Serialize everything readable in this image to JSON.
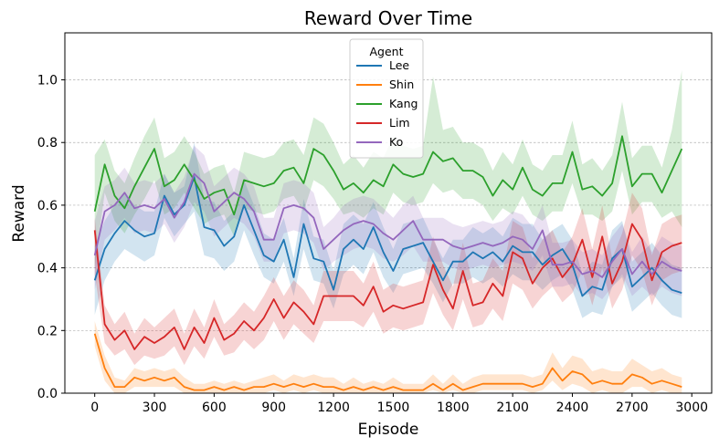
{
  "chart_data": {
    "type": "line",
    "title": "Reward Over Time",
    "xlabel": "Episode",
    "ylabel": "Reward",
    "xlim": [
      -150,
      3100
    ],
    "ylim": [
      0.0,
      1.15
    ],
    "xticks": [
      0,
      300,
      600,
      900,
      1200,
      1500,
      1800,
      2100,
      2400,
      2700,
      3000
    ],
    "xtick_labels": [
      "0",
      "300",
      "600",
      "900",
      "1200",
      "1500",
      "1800",
      "2100",
      "2400",
      "2700",
      "3000"
    ],
    "yticks": [
      0.0,
      0.2,
      0.4,
      0.6,
      0.8,
      1.0
    ],
    "ytick_labels": [
      "0.0",
      "0.2",
      "0.4",
      "0.6",
      "0.8",
      "1.0"
    ],
    "grid": "horizontal dashed",
    "legend": {
      "title": "Agent",
      "placement": "top-center"
    },
    "x": [
      0,
      50,
      100,
      150,
      200,
      250,
      300,
      350,
      400,
      450,
      500,
      550,
      600,
      650,
      700,
      750,
      800,
      850,
      900,
      950,
      1000,
      1050,
      1100,
      1150,
      1200,
      1250,
      1300,
      1350,
      1400,
      1450,
      1500,
      1550,
      1600,
      1650,
      1700,
      1750,
      1800,
      1850,
      1900,
      1950,
      2000,
      2050,
      2100,
      2150,
      2200,
      2250,
      2300,
      2350,
      2400,
      2450,
      2500,
      2550,
      2600,
      2650,
      2700,
      2750,
      2800,
      2850,
      2900,
      2950
    ],
    "series": [
      {
        "name": "Lee",
        "color": "#1f77b4",
        "values": [
          0.36,
          0.46,
          0.51,
          0.55,
          0.52,
          0.5,
          0.51,
          0.63,
          0.57,
          0.6,
          0.69,
          0.53,
          0.52,
          0.47,
          0.5,
          0.6,
          0.52,
          0.44,
          0.42,
          0.49,
          0.37,
          0.54,
          0.43,
          0.42,
          0.33,
          0.46,
          0.49,
          0.46,
          0.53,
          0.45,
          0.39,
          0.46,
          0.47,
          0.48,
          0.42,
          0.36,
          0.42,
          0.42,
          0.45,
          0.43,
          0.45,
          0.42,
          0.47,
          0.45,
          0.45,
          0.41,
          0.44,
          0.46,
          0.41,
          0.31,
          0.34,
          0.33,
          0.43,
          0.46,
          0.34,
          0.37,
          0.4,
          0.36,
          0.33,
          0.32
        ],
        "lower": [
          0.25,
          0.36,
          0.42,
          0.46,
          0.44,
          0.42,
          0.44,
          0.56,
          0.5,
          0.54,
          0.58,
          0.44,
          0.43,
          0.39,
          0.42,
          0.52,
          0.44,
          0.37,
          0.35,
          0.42,
          0.31,
          0.46,
          0.36,
          0.35,
          0.27,
          0.38,
          0.41,
          0.38,
          0.45,
          0.37,
          0.32,
          0.38,
          0.39,
          0.4,
          0.35,
          0.29,
          0.35,
          0.35,
          0.37,
          0.35,
          0.37,
          0.34,
          0.38,
          0.36,
          0.36,
          0.33,
          0.36,
          0.38,
          0.33,
          0.24,
          0.26,
          0.25,
          0.34,
          0.37,
          0.26,
          0.29,
          0.32,
          0.28,
          0.25,
          0.24
        ],
        "upper": [
          0.47,
          0.55,
          0.6,
          0.64,
          0.6,
          0.58,
          0.58,
          0.7,
          0.64,
          0.66,
          0.8,
          0.62,
          0.61,
          0.55,
          0.58,
          0.68,
          0.6,
          0.51,
          0.49,
          0.56,
          0.43,
          0.62,
          0.5,
          0.49,
          0.39,
          0.54,
          0.57,
          0.54,
          0.61,
          0.53,
          0.46,
          0.54,
          0.55,
          0.56,
          0.49,
          0.43,
          0.49,
          0.49,
          0.53,
          0.51,
          0.53,
          0.5,
          0.56,
          0.54,
          0.54,
          0.49,
          0.52,
          0.54,
          0.49,
          0.38,
          0.42,
          0.41,
          0.52,
          0.55,
          0.42,
          0.45,
          0.48,
          0.44,
          0.41,
          0.4
        ]
      },
      {
        "name": "Shin",
        "color": "#ff7f0e",
        "values": [
          0.19,
          0.08,
          0.02,
          0.02,
          0.05,
          0.04,
          0.05,
          0.04,
          0.05,
          0.02,
          0.01,
          0.01,
          0.02,
          0.01,
          0.02,
          0.01,
          0.02,
          0.02,
          0.03,
          0.02,
          0.03,
          0.02,
          0.03,
          0.02,
          0.02,
          0.01,
          0.02,
          0.01,
          0.02,
          0.01,
          0.02,
          0.01,
          0.01,
          0.01,
          0.03,
          0.01,
          0.03,
          0.01,
          0.02,
          0.03,
          0.03,
          0.03,
          0.03,
          0.03,
          0.02,
          0.03,
          0.08,
          0.04,
          0.07,
          0.06,
          0.03,
          0.04,
          0.03,
          0.03,
          0.06,
          0.05,
          0.03,
          0.04,
          0.03,
          0.02
        ],
        "lower": [
          0.15,
          0.04,
          0.0,
          0.0,
          0.02,
          0.02,
          0.02,
          0.02,
          0.02,
          0.0,
          0.0,
          0.0,
          0.0,
          0.0,
          0.0,
          0.0,
          0.0,
          0.0,
          0.01,
          0.0,
          0.01,
          0.0,
          0.01,
          0.0,
          0.0,
          0.0,
          0.0,
          0.0,
          0.0,
          0.0,
          0.0,
          0.0,
          0.0,
          0.0,
          0.01,
          0.0,
          0.01,
          0.0,
          0.0,
          0.01,
          0.01,
          0.01,
          0.01,
          0.01,
          0.0,
          0.01,
          0.04,
          0.01,
          0.03,
          0.02,
          0.0,
          0.01,
          0.0,
          0.0,
          0.02,
          0.02,
          0.0,
          0.01,
          0.0,
          0.0
        ],
        "upper": [
          0.23,
          0.12,
          0.05,
          0.04,
          0.08,
          0.07,
          0.08,
          0.07,
          0.08,
          0.05,
          0.03,
          0.03,
          0.04,
          0.03,
          0.04,
          0.03,
          0.04,
          0.05,
          0.06,
          0.04,
          0.06,
          0.05,
          0.06,
          0.05,
          0.05,
          0.03,
          0.05,
          0.03,
          0.04,
          0.03,
          0.05,
          0.03,
          0.03,
          0.03,
          0.06,
          0.03,
          0.06,
          0.03,
          0.05,
          0.06,
          0.06,
          0.06,
          0.06,
          0.06,
          0.05,
          0.06,
          0.13,
          0.08,
          0.12,
          0.11,
          0.07,
          0.08,
          0.07,
          0.07,
          0.11,
          0.09,
          0.07,
          0.08,
          0.06,
          0.05
        ]
      },
      {
        "name": "Kang",
        "color": "#2ca02c",
        "values": [
          0.58,
          0.73,
          0.63,
          0.59,
          0.66,
          0.72,
          0.78,
          0.66,
          0.68,
          0.73,
          0.68,
          0.62,
          0.64,
          0.65,
          0.57,
          0.68,
          0.67,
          0.66,
          0.67,
          0.71,
          0.72,
          0.67,
          0.78,
          0.76,
          0.71,
          0.65,
          0.67,
          0.64,
          0.68,
          0.66,
          0.73,
          0.7,
          0.69,
          0.7,
          0.77,
          0.74,
          0.75,
          0.71,
          0.71,
          0.69,
          0.63,
          0.68,
          0.65,
          0.72,
          0.65,
          0.63,
          0.67,
          0.67,
          0.77,
          0.65,
          0.66,
          0.63,
          0.67,
          0.82,
          0.66,
          0.7,
          0.7,
          0.64,
          0.71,
          0.78
        ],
        "lower": [
          0.4,
          0.64,
          0.55,
          0.51,
          0.57,
          0.62,
          0.68,
          0.57,
          0.59,
          0.64,
          0.59,
          0.54,
          0.56,
          0.57,
          0.5,
          0.59,
          0.58,
          0.57,
          0.58,
          0.62,
          0.63,
          0.58,
          0.68,
          0.66,
          0.62,
          0.57,
          0.58,
          0.56,
          0.59,
          0.57,
          0.64,
          0.61,
          0.6,
          0.61,
          0.67,
          0.64,
          0.65,
          0.62,
          0.62,
          0.6,
          0.55,
          0.59,
          0.57,
          0.63,
          0.57,
          0.55,
          0.58,
          0.58,
          0.67,
          0.57,
          0.57,
          0.55,
          0.58,
          0.71,
          0.57,
          0.61,
          0.61,
          0.56,
          0.58,
          0.53
        ],
        "upper": [
          0.76,
          0.81,
          0.71,
          0.67,
          0.75,
          0.82,
          0.88,
          0.75,
          0.77,
          0.82,
          0.77,
          0.7,
          0.72,
          0.73,
          0.64,
          0.77,
          0.76,
          0.75,
          0.76,
          0.8,
          0.81,
          0.76,
          0.88,
          0.86,
          0.8,
          0.73,
          0.76,
          0.72,
          0.77,
          0.75,
          0.82,
          0.79,
          0.78,
          0.79,
          1.01,
          0.84,
          0.85,
          0.8,
          0.8,
          0.78,
          0.71,
          0.77,
          0.73,
          0.81,
          0.73,
          0.71,
          0.76,
          0.76,
          0.87,
          0.73,
          0.75,
          0.71,
          0.76,
          0.93,
          0.75,
          0.79,
          0.79,
          0.72,
          0.84,
          1.03
        ]
      },
      {
        "name": "Lim",
        "color": "#d62728",
        "values": [
          0.52,
          0.22,
          0.17,
          0.2,
          0.14,
          0.18,
          0.16,
          0.18,
          0.21,
          0.14,
          0.21,
          0.16,
          0.24,
          0.17,
          0.19,
          0.23,
          0.2,
          0.24,
          0.3,
          0.24,
          0.29,
          0.26,
          0.22,
          0.31,
          0.31,
          0.31,
          0.31,
          0.28,
          0.34,
          0.26,
          0.28,
          0.27,
          0.28,
          0.29,
          0.41,
          0.33,
          0.27,
          0.39,
          0.28,
          0.29,
          0.35,
          0.31,
          0.45,
          0.43,
          0.35,
          0.4,
          0.43,
          0.37,
          0.41,
          0.49,
          0.37,
          0.5,
          0.35,
          0.42,
          0.54,
          0.49,
          0.36,
          0.45,
          0.47,
          0.48
        ],
        "lower": [
          0.38,
          0.16,
          0.12,
          0.14,
          0.09,
          0.12,
          0.11,
          0.12,
          0.15,
          0.09,
          0.15,
          0.11,
          0.18,
          0.12,
          0.13,
          0.17,
          0.14,
          0.17,
          0.23,
          0.17,
          0.22,
          0.19,
          0.16,
          0.23,
          0.23,
          0.23,
          0.23,
          0.21,
          0.26,
          0.19,
          0.21,
          0.2,
          0.21,
          0.22,
          0.32,
          0.25,
          0.2,
          0.3,
          0.21,
          0.22,
          0.27,
          0.23,
          0.35,
          0.33,
          0.27,
          0.31,
          0.34,
          0.29,
          0.32,
          0.39,
          0.28,
          0.4,
          0.27,
          0.33,
          0.44,
          0.39,
          0.28,
          0.36,
          0.38,
          0.39
        ],
        "upper": [
          0.56,
          0.28,
          0.22,
          0.26,
          0.19,
          0.24,
          0.21,
          0.24,
          0.27,
          0.19,
          0.27,
          0.21,
          0.3,
          0.22,
          0.25,
          0.29,
          0.26,
          0.31,
          0.37,
          0.31,
          0.36,
          0.33,
          0.28,
          0.39,
          0.39,
          0.39,
          0.39,
          0.35,
          0.42,
          0.33,
          0.35,
          0.34,
          0.35,
          0.36,
          0.5,
          0.41,
          0.34,
          0.48,
          0.35,
          0.36,
          0.43,
          0.39,
          0.55,
          0.53,
          0.43,
          0.49,
          0.52,
          0.45,
          0.5,
          0.59,
          0.46,
          0.6,
          0.43,
          0.51,
          0.64,
          0.59,
          0.44,
          0.54,
          0.56,
          0.57
        ]
      },
      {
        "name": "Ko",
        "color": "#9467bd",
        "values": [
          0.44,
          0.58,
          0.6,
          0.64,
          0.59,
          0.6,
          0.59,
          0.62,
          0.56,
          0.61,
          0.7,
          0.67,
          0.58,
          0.61,
          0.64,
          0.62,
          0.58,
          0.49,
          0.49,
          0.59,
          0.6,
          0.59,
          0.56,
          0.46,
          0.49,
          0.52,
          0.54,
          0.55,
          0.54,
          0.51,
          0.49,
          0.52,
          0.55,
          0.49,
          0.49,
          0.49,
          0.47,
          0.46,
          0.47,
          0.48,
          0.47,
          0.48,
          0.5,
          0.49,
          0.46,
          0.52,
          0.41,
          0.41,
          0.42,
          0.38,
          0.39,
          0.37,
          0.42,
          0.46,
          0.38,
          0.42,
          0.38,
          0.42,
          0.4,
          0.39
        ],
        "lower": [
          0.33,
          0.49,
          0.52,
          0.56,
          0.51,
          0.52,
          0.51,
          0.54,
          0.48,
          0.53,
          0.61,
          0.58,
          0.5,
          0.53,
          0.56,
          0.54,
          0.5,
          0.42,
          0.42,
          0.51,
          0.52,
          0.51,
          0.48,
          0.39,
          0.42,
          0.44,
          0.46,
          0.47,
          0.46,
          0.43,
          0.42,
          0.44,
          0.47,
          0.42,
          0.42,
          0.42,
          0.4,
          0.39,
          0.4,
          0.41,
          0.4,
          0.41,
          0.42,
          0.41,
          0.39,
          0.44,
          0.34,
          0.34,
          0.35,
          0.31,
          0.32,
          0.3,
          0.34,
          0.38,
          0.31,
          0.34,
          0.31,
          0.34,
          0.32,
          0.31
        ],
        "upper": [
          0.55,
          0.66,
          0.68,
          0.72,
          0.67,
          0.68,
          0.67,
          0.7,
          0.64,
          0.69,
          0.79,
          0.76,
          0.66,
          0.69,
          0.72,
          0.7,
          0.66,
          0.56,
          0.56,
          0.67,
          0.68,
          0.67,
          0.64,
          0.53,
          0.56,
          0.6,
          0.62,
          0.63,
          0.62,
          0.59,
          0.56,
          0.6,
          0.63,
          0.56,
          0.56,
          0.56,
          0.54,
          0.53,
          0.54,
          0.55,
          0.54,
          0.55,
          0.58,
          0.57,
          0.53,
          0.6,
          0.48,
          0.48,
          0.49,
          0.45,
          0.46,
          0.44,
          0.5,
          0.54,
          0.45,
          0.5,
          0.45,
          0.5,
          0.48,
          0.47
        ]
      }
    ]
  }
}
